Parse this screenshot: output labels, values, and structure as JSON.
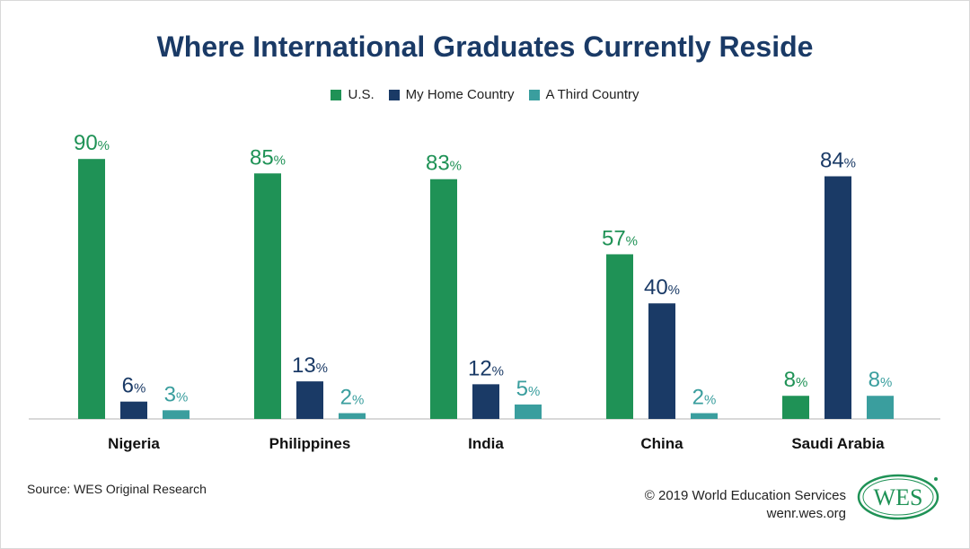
{
  "colors": {
    "us": "#1f9256",
    "home": "#1a3a66",
    "third": "#3a9e9e",
    "axis": "#cccccc"
  },
  "chart_data": {
    "type": "bar",
    "title": "Where International Graduates Currently Reside",
    "categories": [
      "Nigeria",
      "Philippines",
      "India",
      "China",
      "Saudi Arabia"
    ],
    "series": [
      {
        "name": "U.S.",
        "values": [
          90,
          85,
          83,
          57,
          8
        ]
      },
      {
        "name": "My Home Country",
        "values": [
          6,
          13,
          12,
          40,
          84
        ]
      },
      {
        "name": "A Third Country",
        "values": [
          3,
          2,
          5,
          2,
          8
        ]
      }
    ],
    "value_suffix": "%",
    "ylim": [
      0,
      100
    ],
    "grid": false,
    "legend_position": "top-center"
  },
  "source": "Source: WES Original Research",
  "footer": {
    "copyright": "© 2019 World Education Services",
    "site": "wenr.wes.org"
  },
  "logo": {
    "text": "WES"
  }
}
